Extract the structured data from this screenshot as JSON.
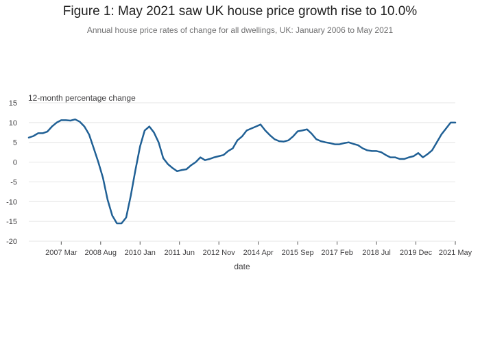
{
  "title": "Figure 1: May 2021 saw UK house price growth rise to 10.0%",
  "subtitle": "Annual house price rates of change for all dwellings, UK: January 2006 to May 2021",
  "colors": {
    "line": "#206095",
    "grid": "#e4e4e4",
    "axis": "#555555",
    "text": "#414042"
  },
  "chart_data": {
    "type": "line",
    "title": "Figure 1: May 2021 saw UK house price growth rise to 10.0%",
    "subtitle": "Annual house price rates of change for all dwellings, UK: January 2006 to May 2021",
    "xlabel": "date",
    "ylabel": "12-month percentage change",
    "ylim": [
      -20,
      15
    ],
    "yticks": [
      15,
      10,
      5,
      0,
      -5,
      -10,
      -15,
      -20
    ],
    "xlim": [
      "2006-01",
      "2021-05"
    ],
    "xticks": [
      {
        "date": "2007-03",
        "label": "2007 Mar"
      },
      {
        "date": "2008-08",
        "label": "2008 Aug"
      },
      {
        "date": "2010-01",
        "label": "2010 Jan"
      },
      {
        "date": "2011-06",
        "label": "2011 Jun"
      },
      {
        "date": "2012-11",
        "label": "2012 Nov"
      },
      {
        "date": "2014-04",
        "label": "2014 Apr"
      },
      {
        "date": "2015-09",
        "label": "2015 Sep"
      },
      {
        "date": "2017-02",
        "label": "2017 Feb"
      },
      {
        "date": "2018-07",
        "label": "2018 Jul"
      },
      {
        "date": "2019-12",
        "label": "2019 Dec"
      },
      {
        "date": "2021-05",
        "label": "2021 May"
      }
    ],
    "grid": true,
    "legend": "none",
    "series": [
      {
        "points": [
          [
            "2006-01",
            6.2
          ],
          [
            "2006-03",
            6.6
          ],
          [
            "2006-05",
            7.3
          ],
          [
            "2006-07",
            7.3
          ],
          [
            "2006-09",
            7.7
          ],
          [
            "2006-11",
            9.0
          ],
          [
            "2007-01",
            10.0
          ],
          [
            "2007-03",
            10.6
          ],
          [
            "2007-05",
            10.6
          ],
          [
            "2007-07",
            10.5
          ],
          [
            "2007-09",
            10.8
          ],
          [
            "2007-11",
            10.2
          ],
          [
            "2008-01",
            9.0
          ],
          [
            "2008-03",
            7.0
          ],
          [
            "2008-05",
            3.5
          ],
          [
            "2008-07",
            0.0
          ],
          [
            "2008-09",
            -4.0
          ],
          [
            "2008-11",
            -9.5
          ],
          [
            "2009-01",
            -13.5
          ],
          [
            "2009-03",
            -15.5
          ],
          [
            "2009-05",
            -15.5
          ],
          [
            "2009-07",
            -14.0
          ],
          [
            "2009-09",
            -8.5
          ],
          [
            "2009-11",
            -2.0
          ],
          [
            "2010-01",
            4.0
          ],
          [
            "2010-03",
            8.0
          ],
          [
            "2010-05",
            9.0
          ],
          [
            "2010-07",
            7.5
          ],
          [
            "2010-09",
            5.0
          ],
          [
            "2010-11",
            1.0
          ],
          [
            "2011-01",
            -0.5
          ],
          [
            "2011-03",
            -1.5
          ],
          [
            "2011-05",
            -2.3
          ],
          [
            "2011-07",
            -2.0
          ],
          [
            "2011-09",
            -1.8
          ],
          [
            "2011-11",
            -0.8
          ],
          [
            "2012-01",
            0.0
          ],
          [
            "2012-03",
            1.2
          ],
          [
            "2012-05",
            0.5
          ],
          [
            "2012-07",
            0.8
          ],
          [
            "2012-09",
            1.2
          ],
          [
            "2012-11",
            1.5
          ],
          [
            "2013-01",
            1.8
          ],
          [
            "2013-03",
            2.8
          ],
          [
            "2013-05",
            3.5
          ],
          [
            "2013-07",
            5.5
          ],
          [
            "2013-09",
            6.5
          ],
          [
            "2013-11",
            8.0
          ],
          [
            "2014-01",
            8.5
          ],
          [
            "2014-03",
            9.0
          ],
          [
            "2014-05",
            9.5
          ],
          [
            "2014-07",
            8.0
          ],
          [
            "2014-09",
            6.8
          ],
          [
            "2014-11",
            5.8
          ],
          [
            "2015-01",
            5.3
          ],
          [
            "2015-03",
            5.2
          ],
          [
            "2015-05",
            5.5
          ],
          [
            "2015-07",
            6.5
          ],
          [
            "2015-09",
            7.8
          ],
          [
            "2015-11",
            8.0
          ],
          [
            "2016-01",
            8.3
          ],
          [
            "2016-03",
            7.2
          ],
          [
            "2016-05",
            5.8
          ],
          [
            "2016-07",
            5.3
          ],
          [
            "2016-09",
            5.0
          ],
          [
            "2016-11",
            4.8
          ],
          [
            "2017-01",
            4.5
          ],
          [
            "2017-03",
            4.5
          ],
          [
            "2017-05",
            4.8
          ],
          [
            "2017-07",
            5.0
          ],
          [
            "2017-09",
            4.6
          ],
          [
            "2017-11",
            4.3
          ],
          [
            "2018-01",
            3.5
          ],
          [
            "2018-03",
            3.0
          ],
          [
            "2018-05",
            2.8
          ],
          [
            "2018-07",
            2.8
          ],
          [
            "2018-09",
            2.5
          ],
          [
            "2018-11",
            1.8
          ],
          [
            "2019-01",
            1.2
          ],
          [
            "2019-03",
            1.2
          ],
          [
            "2019-05",
            0.8
          ],
          [
            "2019-07",
            0.8
          ],
          [
            "2019-09",
            1.2
          ],
          [
            "2019-11",
            1.5
          ],
          [
            "2020-01",
            2.3
          ],
          [
            "2020-03",
            1.2
          ],
          [
            "2020-05",
            2.0
          ],
          [
            "2020-07",
            3.0
          ],
          [
            "2020-09",
            5.0
          ],
          [
            "2020-11",
            7.0
          ],
          [
            "2021-01",
            8.5
          ],
          [
            "2021-03",
            10.0
          ],
          [
            "2021-05",
            10.0
          ]
        ]
      }
    ]
  }
}
